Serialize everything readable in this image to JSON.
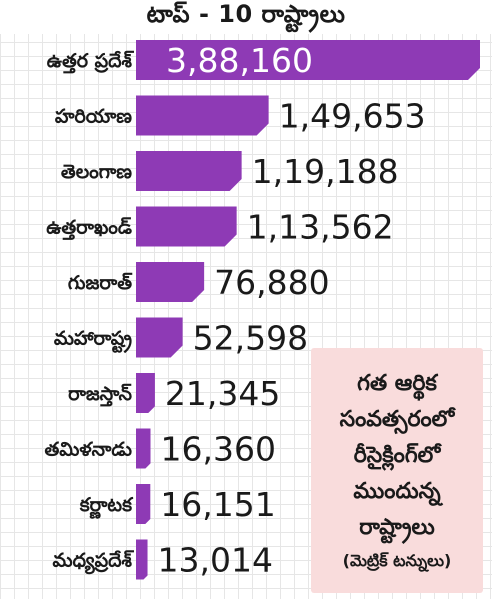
{
  "chart_data": {
    "type": "bar",
    "orientation": "horizontal",
    "title": "టాప్ - 10 రాష్ట్రాలు",
    "categories": [
      "ఉత్తర ప్రదేశ్",
      "హరియాణ",
      "తెలంగాణ",
      "ఉత్తరాఖండ్",
      "గుజరాత్",
      "మహారాష్ట్ర",
      "రాజస్తాన్",
      "తమిళనాడు",
      "కర్ణాటక",
      "మధ్యప్రదేశ్"
    ],
    "values": [
      388160,
      149653,
      119188,
      113562,
      76880,
      52598,
      21345,
      16360,
      16151,
      13014
    ],
    "value_labels": [
      "3,88,160",
      "1,49,653",
      "1,19,188",
      "1,13,562",
      "76,880",
      "52,598",
      "21,345",
      "16,360",
      "16,151",
      "13,014"
    ],
    "bar_color": "#8e3ab5",
    "xlim": [
      0,
      388160
    ],
    "grid": true
  },
  "note": {
    "lines": [
      "గత ఆర్థిక",
      "సంవత్సరంలో",
      "రీసైక్లింగ్‌లో",
      "ముందున్న",
      "రాష్ట్రాలు"
    ],
    "unit": "(మెట్రిక్ టన్నులు)"
  }
}
